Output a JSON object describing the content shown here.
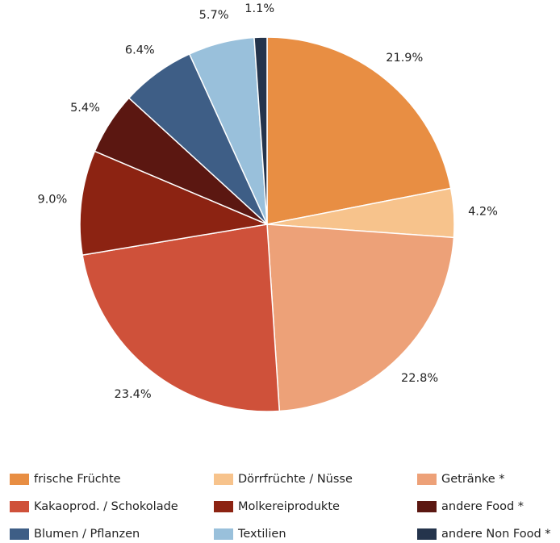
{
  "chart_data": {
    "type": "pie",
    "title": "",
    "legend_position": "bottom",
    "slices": [
      {
        "label": "frische Früchte",
        "value": 21.9,
        "value_label": "21.9%",
        "color": "#E88E43"
      },
      {
        "label": "Dörrfrüchte / Nüsse",
        "value": 4.2,
        "value_label": "4.2%",
        "color": "#F7C38C"
      },
      {
        "label": "Getränke *",
        "value": 22.8,
        "value_label": "22.8%",
        "color": "#EDA178"
      },
      {
        "label": "Kakaoprod. / Schokolade",
        "value": 23.4,
        "value_label": "23.4%",
        "color": "#CF513A"
      },
      {
        "label": "Molkereiprodukte",
        "value": 9.0,
        "value_label": "9.0%",
        "color": "#8C2312"
      },
      {
        "label": "andere Food *",
        "value": 5.4,
        "value_label": "5.4%",
        "color": "#5B1711"
      },
      {
        "label": "Blumen / Pflanzen",
        "value": 6.4,
        "value_label": "6.4%",
        "color": "#3E5E86"
      },
      {
        "label": "Textilien",
        "value": 5.7,
        "value_label": "5.7%",
        "color": "#99C0DB"
      },
      {
        "label": "andere Non Food *",
        "value": 1.1,
        "value_label": "1.1%",
        "color": "#24344C"
      }
    ]
  }
}
